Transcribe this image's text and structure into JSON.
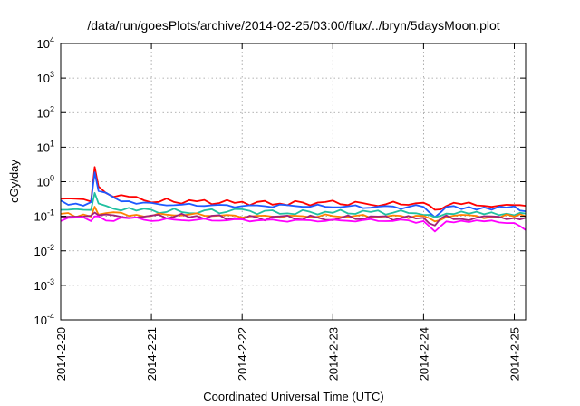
{
  "chart_data": {
    "type": "line",
    "title": "/data/run/goesPlots/archive/2014-02-25/03:00/flux/../bryn/5daysMoon.plot",
    "xlabel": "Coordinated Universal Time (UTC)",
    "ylabel": "cGy/day",
    "y_scale": "log",
    "ylim": [
      0.0001,
      10000
    ],
    "y_ticks": [
      {
        "value": 0.0001,
        "base": "10",
        "exp": "-4"
      },
      {
        "value": 0.001,
        "base": "10",
        "exp": "-3"
      },
      {
        "value": 0.01,
        "base": "10",
        "exp": "-2"
      },
      {
        "value": 0.1,
        "base": "10",
        "exp": "-1"
      },
      {
        "value": 1,
        "base": "10",
        "exp": "0"
      },
      {
        "value": 10,
        "base": "10",
        "exp": "1"
      },
      {
        "value": 100,
        "base": "10",
        "exp": "2"
      },
      {
        "value": 1000,
        "base": "10",
        "exp": "3"
      },
      {
        "value": 10000,
        "base": "10",
        "exp": "4"
      }
    ],
    "xlim": [
      "2014-02-20 00:00",
      "2014-02-25 03:00"
    ],
    "x_ticks": [
      "2014-2-20",
      "2014-2-21",
      "2014-2-22",
      "2014-2-23",
      "2014-2-24",
      "2014-2-25"
    ],
    "grid": true,
    "series": [
      {
        "color": "#ff0000",
        "x": [
          "2014-02-20 00:00",
          "2014-02-20 06:00",
          "2014-02-20 08:00",
          "2014-02-20 09:00",
          "2014-02-20 10:00",
          "2014-02-20 14:00",
          "2014-02-20 20:00",
          "2014-02-21 00:00",
          "2014-02-21 12:00",
          "2014-02-22 00:00",
          "2014-02-22 12:00",
          "2014-02-23 00:00",
          "2014-02-23 12:00",
          "2014-02-24 00:00",
          "2014-02-24 03:00",
          "2014-02-24 06:00",
          "2014-02-24 12:00",
          "2014-02-24 18:00",
          "2014-02-25 00:00",
          "2014-02-25 03:00"
        ],
        "y": [
          0.32,
          0.3,
          0.28,
          2.6,
          0.7,
          0.4,
          0.32,
          0.28,
          0.26,
          0.25,
          0.24,
          0.24,
          0.23,
          0.23,
          0.15,
          0.22,
          0.22,
          0.21,
          0.2,
          0.2
        ]
      },
      {
        "color": "#1e5aff",
        "x": [
          "2014-02-20 00:00",
          "2014-02-20 06:00",
          "2014-02-20 08:00",
          "2014-02-20 09:00",
          "2014-02-20 10:00",
          "2014-02-20 14:00",
          "2014-02-20 20:00",
          "2014-02-21 00:00",
          "2014-02-21 12:00",
          "2014-02-22 00:00",
          "2014-02-22 12:00",
          "2014-02-23 00:00",
          "2014-02-23 12:00",
          "2014-02-24 00:00",
          "2014-02-24 03:00",
          "2014-02-24 06:00",
          "2014-02-24 12:00",
          "2014-02-24 18:00",
          "2014-02-25 00:00",
          "2014-02-25 03:00"
        ],
        "y": [
          0.25,
          0.24,
          0.22,
          2.0,
          0.55,
          0.32,
          0.26,
          0.22,
          0.21,
          0.2,
          0.2,
          0.19,
          0.19,
          0.18,
          0.1,
          0.18,
          0.18,
          0.17,
          0.17,
          0.14
        ]
      },
      {
        "color": "#20c0a0",
        "x": [
          "2014-02-20 00:00",
          "2014-02-20 06:00",
          "2014-02-20 08:00",
          "2014-02-20 09:00",
          "2014-02-20 10:00",
          "2014-02-20 14:00",
          "2014-02-20 20:00",
          "2014-02-21 00:00",
          "2014-02-21 12:00",
          "2014-02-22 00:00",
          "2014-02-22 12:00",
          "2014-02-23 00:00",
          "2014-02-23 12:00",
          "2014-02-24 00:00",
          "2014-02-24 03:00",
          "2014-02-24 06:00",
          "2014-02-24 12:00",
          "2014-02-24 18:00",
          "2014-02-25 00:00",
          "2014-02-25 03:00"
        ],
        "y": [
          0.16,
          0.15,
          0.15,
          0.5,
          0.22,
          0.17,
          0.15,
          0.14,
          0.14,
          0.14,
          0.13,
          0.13,
          0.13,
          0.13,
          0.08,
          0.13,
          0.12,
          0.12,
          0.12,
          0.12
        ]
      },
      {
        "color": "#ff8000",
        "x": [
          "2014-02-20 00:00",
          "2014-02-20 06:00",
          "2014-02-20 08:00",
          "2014-02-20 09:00",
          "2014-02-20 10:00",
          "2014-02-20 14:00",
          "2014-02-20 20:00",
          "2014-02-21 00:00",
          "2014-02-21 12:00",
          "2014-02-22 00:00",
          "2014-02-22 12:00",
          "2014-02-23 00:00",
          "2014-02-23 12:00",
          "2014-02-24 00:00",
          "2014-02-24 03:00",
          "2014-02-24 06:00",
          "2014-02-24 12:00",
          "2014-02-24 18:00",
          "2014-02-25 00:00",
          "2014-02-25 03:00"
        ],
        "y": [
          0.11,
          0.11,
          0.11,
          0.16,
          0.13,
          0.12,
          0.11,
          0.11,
          0.11,
          0.1,
          0.1,
          0.1,
          0.1,
          0.1,
          0.07,
          0.1,
          0.1,
          0.1,
          0.1,
          0.1
        ]
      },
      {
        "color": "#a0207a",
        "x": [
          "2014-02-20 00:00",
          "2014-02-20 06:00",
          "2014-02-20 08:00",
          "2014-02-20 09:00",
          "2014-02-20 10:00",
          "2014-02-20 14:00",
          "2014-02-20 20:00",
          "2014-02-21 00:00",
          "2014-02-21 12:00",
          "2014-02-22 00:00",
          "2014-02-22 12:00",
          "2014-02-23 00:00",
          "2014-02-23 12:00",
          "2014-02-24 00:00",
          "2014-02-24 03:00",
          "2014-02-24 06:00",
          "2014-02-24 12:00",
          "2014-02-24 18:00",
          "2014-02-25 00:00",
          "2014-02-25 03:00"
        ],
        "y": [
          0.1,
          0.1,
          0.1,
          0.13,
          0.11,
          0.1,
          0.1,
          0.1,
          0.1,
          0.09,
          0.09,
          0.09,
          0.09,
          0.09,
          0.06,
          0.09,
          0.09,
          0.09,
          0.09,
          0.09
        ]
      },
      {
        "color": "#ff00ff",
        "x": [
          "2014-02-20 00:00",
          "2014-02-20 06:00",
          "2014-02-20 08:00",
          "2014-02-20 09:00",
          "2014-02-20 10:00",
          "2014-02-20 14:00",
          "2014-02-20 20:00",
          "2014-02-21 00:00",
          "2014-02-21 12:00",
          "2014-02-22 00:00",
          "2014-02-22 12:00",
          "2014-02-23 00:00",
          "2014-02-23 12:00",
          "2014-02-24 00:00",
          "2014-02-24 03:00",
          "2014-02-24 06:00",
          "2014-02-24 12:00",
          "2014-02-24 18:00",
          "2014-02-25 00:00",
          "2014-02-25 03:00"
        ],
        "y": [
          0.085,
          0.08,
          0.08,
          0.1,
          0.09,
          0.085,
          0.08,
          0.08,
          0.078,
          0.077,
          0.076,
          0.075,
          0.075,
          0.074,
          0.035,
          0.072,
          0.07,
          0.07,
          0.07,
          0.04
        ]
      }
    ]
  }
}
